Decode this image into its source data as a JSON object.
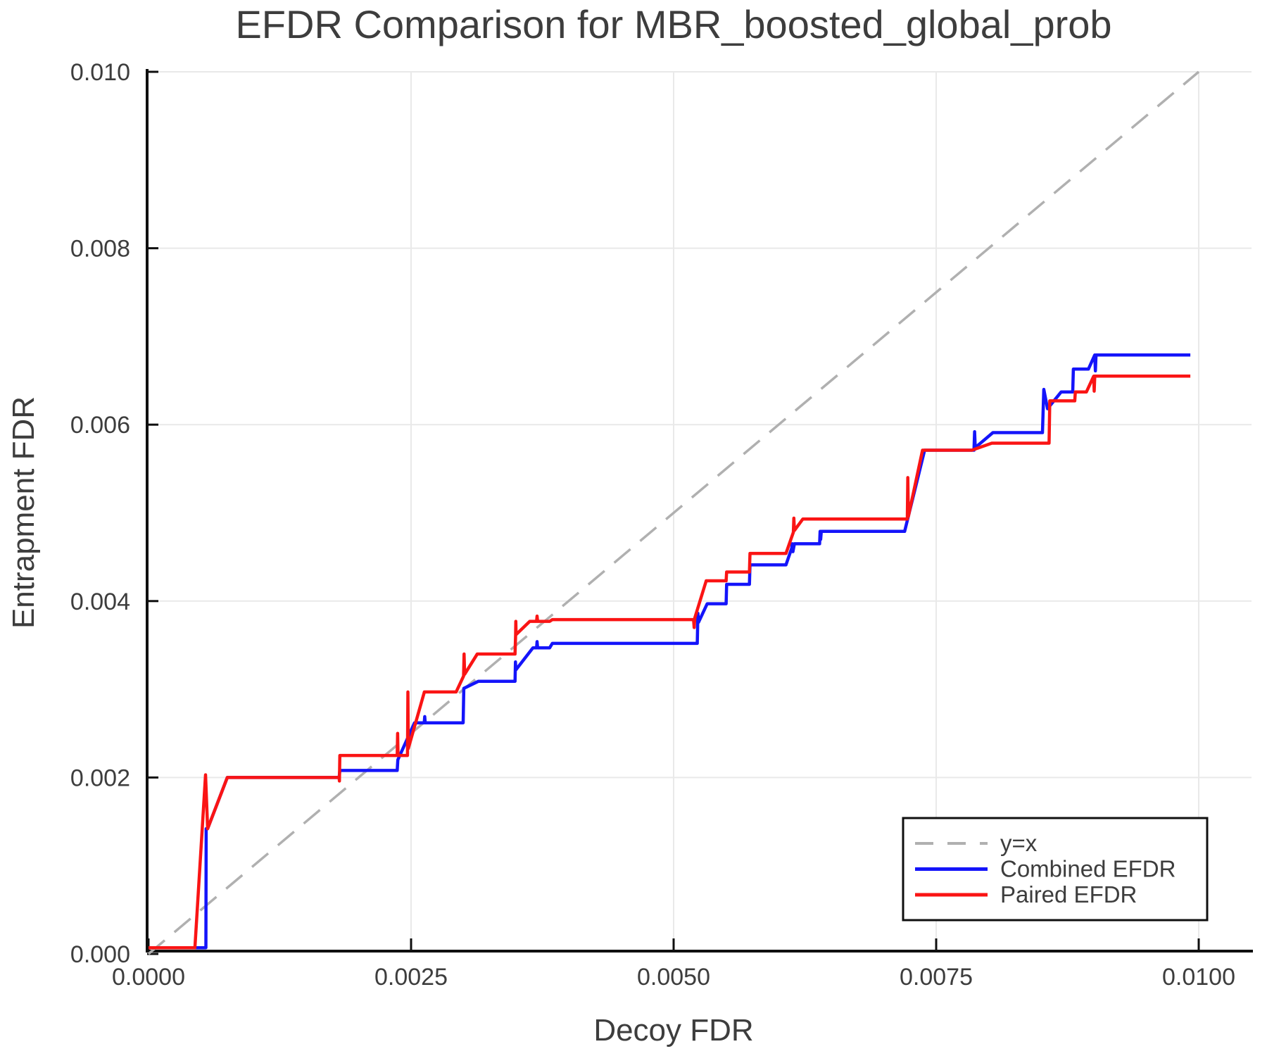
{
  "chart_data": {
    "type": "line",
    "title": "EFDR Comparison for MBR_boosted_global_prob",
    "xlabel": "Decoy FDR",
    "ylabel": "Entrapment FDR",
    "xlim": [
      0,
      0.01052
    ],
    "ylim": [
      0,
      0.01
    ],
    "grid": true,
    "legend_position": "lower right",
    "x_ticks": [
      0,
      0.0025,
      0.005,
      0.0075,
      0.01
    ],
    "x_tick_labels": [
      "0.0000",
      "0.0025",
      "0.0050",
      "0.0075",
      "0.0100"
    ],
    "y_ticks": [
      0,
      0.002,
      0.004,
      0.006,
      0.008,
      0.01
    ],
    "y_tick_labels": [
      "0.000",
      "0.002",
      "0.004",
      "0.006",
      "0.008",
      "0.010"
    ],
    "colors": {
      "identity": "#b0b0b0",
      "combined": "#1414fa",
      "paired": "#fa1414",
      "grid": "#e9e9e9",
      "axis": "#0f0f0f",
      "text": "#3d3d3d",
      "legend_border": "#0f0f0f",
      "background": "#ffffff"
    },
    "series": [
      {
        "name": "y=x",
        "key": "identity",
        "style": "dashed",
        "points": [
          [
            0,
            0
          ],
          [
            0.01,
            0.01
          ]
        ]
      },
      {
        "name": "Combined EFDR",
        "key": "combined",
        "style": "solid",
        "points": [
          [
            0.0,
            7e-05
          ],
          [
            0.000546,
            7e-05
          ],
          [
            0.000549,
            0.00142
          ],
          [
            0.000563,
            0.00142
          ],
          [
            0.00075,
            0.002
          ],
          [
            0.001815,
            0.002
          ],
          [
            0.001822,
            0.00208
          ],
          [
            0.002368,
            0.00208
          ],
          [
            0.002374,
            0.0022
          ],
          [
            0.002533,
            0.00262
          ],
          [
            0.002625,
            0.00262
          ],
          [
            0.00263,
            0.00269
          ],
          [
            0.002635,
            0.00262
          ],
          [
            0.002996,
            0.00262
          ],
          [
            0.003002,
            0.00301
          ],
          [
            0.00314,
            0.00309
          ],
          [
            0.00349,
            0.00309
          ],
          [
            0.003494,
            0.00331
          ],
          [
            0.003498,
            0.00322
          ],
          [
            0.00366,
            0.00347
          ],
          [
            0.003695,
            0.00347
          ],
          [
            0.0037,
            0.00354
          ],
          [
            0.003705,
            0.00347
          ],
          [
            0.00382,
            0.00347
          ],
          [
            0.003845,
            0.00352
          ],
          [
            0.005225,
            0.00352
          ],
          [
            0.005231,
            0.00386
          ],
          [
            0.005237,
            0.00376
          ],
          [
            0.00532,
            0.00397
          ],
          [
            0.0055,
            0.00397
          ],
          [
            0.005505,
            0.00419
          ],
          [
            0.005722,
            0.00419
          ],
          [
            0.005727,
            0.00441
          ],
          [
            0.00607,
            0.00441
          ],
          [
            0.006125,
            0.0046
          ],
          [
            0.00613,
            0.00465
          ],
          [
            0.006136,
            0.00456
          ],
          [
            0.00615,
            0.00465
          ],
          [
            0.00639,
            0.00465
          ],
          [
            0.006395,
            0.00479
          ],
          [
            0.0064,
            0.0047
          ],
          [
            0.006406,
            0.00479
          ],
          [
            0.0072,
            0.00479
          ],
          [
            0.00739,
            0.00571
          ],
          [
            0.00786,
            0.00571
          ],
          [
            0.007866,
            0.00592
          ],
          [
            0.007872,
            0.00574
          ],
          [
            0.00804,
            0.00591
          ],
          [
            0.008512,
            0.00591
          ],
          [
            0.008525,
            0.0064
          ],
          [
            0.00856,
            0.00618
          ],
          [
            0.00869,
            0.00637
          ],
          [
            0.0088,
            0.00637
          ],
          [
            0.008806,
            0.00663
          ],
          [
            0.00895,
            0.00663
          ],
          [
            0.00901,
            0.00679
          ],
          [
            0.009016,
            0.00661
          ],
          [
            0.009022,
            0.00679
          ],
          [
            0.00992,
            0.00679
          ]
        ]
      },
      {
        "name": "Paired EFDR",
        "key": "paired",
        "style": "solid",
        "points": [
          [
            0.0,
            7e-05
          ],
          [
            0.000442,
            7e-05
          ],
          [
            0.000543,
            0.00203
          ],
          [
            0.000563,
            0.00142
          ],
          [
            0.00075,
            0.002
          ],
          [
            0.001815,
            0.002
          ],
          [
            0.001818,
            0.00196
          ],
          [
            0.001822,
            0.00225
          ],
          [
            0.002368,
            0.00225
          ],
          [
            0.002372,
            0.0025
          ],
          [
            0.002376,
            0.00225
          ],
          [
            0.002466,
            0.00225
          ],
          [
            0.00247,
            0.00297
          ],
          [
            0.002474,
            0.00233
          ],
          [
            0.002627,
            0.00297
          ],
          [
            0.002929,
            0.00297
          ],
          [
            0.003,
            0.00315
          ],
          [
            0.003005,
            0.0034
          ],
          [
            0.00301,
            0.00317
          ],
          [
            0.00313,
            0.0034
          ],
          [
            0.00349,
            0.0034
          ],
          [
            0.003495,
            0.00361
          ],
          [
            0.003497,
            0.00377
          ],
          [
            0.0035,
            0.00362
          ],
          [
            0.00363,
            0.00377
          ],
          [
            0.003695,
            0.00377
          ],
          [
            0.0037,
            0.00383
          ],
          [
            0.003705,
            0.00377
          ],
          [
            0.00382,
            0.00377
          ],
          [
            0.003845,
            0.00379
          ],
          [
            0.00519,
            0.00379
          ],
          [
            0.005196,
            0.0037
          ],
          [
            0.005202,
            0.00381
          ],
          [
            0.00531,
            0.00423
          ],
          [
            0.0055,
            0.00423
          ],
          [
            0.005505,
            0.00433
          ],
          [
            0.005722,
            0.00433
          ],
          [
            0.005727,
            0.00454
          ],
          [
            0.00607,
            0.00454
          ],
          [
            0.00614,
            0.00478
          ],
          [
            0.006145,
            0.00494
          ],
          [
            0.00615,
            0.0048
          ],
          [
            0.00623,
            0.00493
          ],
          [
            0.0072,
            0.00493
          ],
          [
            0.007225,
            0.00493
          ],
          [
            0.00723,
            0.0054
          ],
          [
            0.007235,
            0.00496
          ],
          [
            0.00737,
            0.00571
          ],
          [
            0.00784,
            0.00571
          ],
          [
            0.00803,
            0.00579
          ],
          [
            0.008575,
            0.00579
          ],
          [
            0.008582,
            0.00627
          ],
          [
            0.00882,
            0.00627
          ],
          [
            0.008825,
            0.00637
          ],
          [
            0.00893,
            0.00637
          ],
          [
            0.009,
            0.00655
          ],
          [
            0.009005,
            0.00638
          ],
          [
            0.00901,
            0.00655
          ],
          [
            0.00992,
            0.00655
          ]
        ]
      }
    ]
  }
}
